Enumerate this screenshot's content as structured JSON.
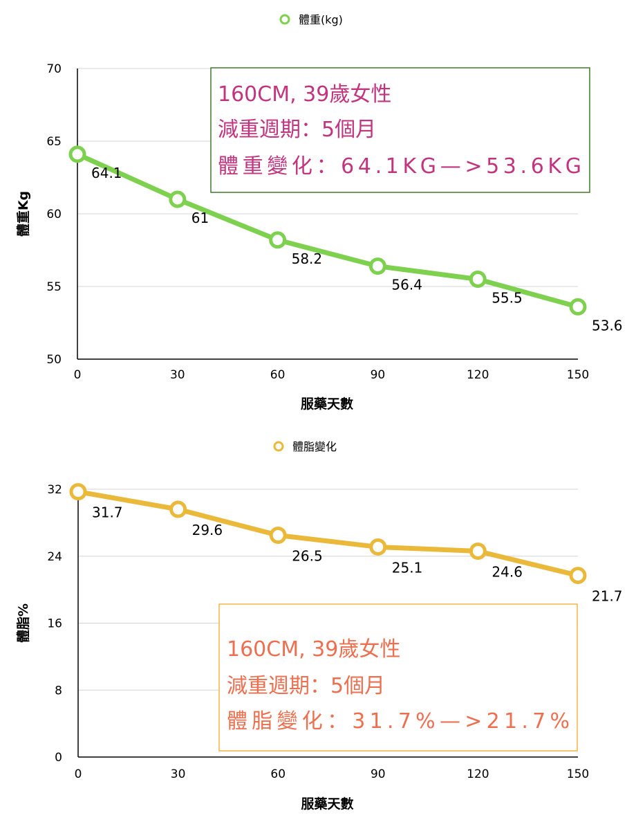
{
  "chart_data": [
    {
      "type": "line",
      "legend": {
        "label": "體重(kg)",
        "placement": "top-center"
      },
      "xlabel": "服藥天數",
      "ylabel": "體重Kg",
      "x": [
        0,
        30,
        60,
        90,
        120,
        150
      ],
      "series": [
        {
          "name": "體重(kg)",
          "values": [
            64.1,
            61,
            58.2,
            56.4,
            55.5,
            53.6
          ]
        }
      ],
      "data_labels": [
        "64.1",
        "61",
        "58.2",
        "56.4",
        "55.5",
        "53.6"
      ],
      "xticks": [
        "0",
        "30",
        "60",
        "90",
        "120",
        "150"
      ],
      "yticks": [
        "50",
        "55",
        "60",
        "65",
        "70"
      ],
      "xlim": [
        0,
        150
      ],
      "ylim": [
        50,
        70
      ],
      "grid": true,
      "color": "#7ed14e",
      "annotation": {
        "lines": [
          "160CM, 39歲女性",
          "減重週期：5個月",
          "體重變化：64.1KG—>53.6KG"
        ],
        "placement": "top-right",
        "text_color": "#c2347e",
        "border_color": "#3d7a2a"
      }
    },
    {
      "type": "line",
      "legend": {
        "label": "體脂變化",
        "placement": "top-center"
      },
      "xlabel": "服藥天數",
      "ylabel": "體脂%",
      "x": [
        0,
        30,
        60,
        90,
        120,
        150
      ],
      "series": [
        {
          "name": "體脂變化",
          "values": [
            31.7,
            29.6,
            26.5,
            25.1,
            24.6,
            21.7
          ]
        }
      ],
      "data_labels": [
        "31.7",
        "29.6",
        "26.5",
        "25.1",
        "24.6",
        "21.7"
      ],
      "xticks": [
        "0",
        "30",
        "60",
        "90",
        "120",
        "150"
      ],
      "yticks": [
        "0",
        "8",
        "16",
        "24",
        "32"
      ],
      "xlim": [
        0,
        150
      ],
      "ylim": [
        0,
        32
      ],
      "grid": true,
      "color": "#ebb93a",
      "annotation": {
        "lines": [
          "160CM, 39歲女性",
          "減重週期：5個月",
          "體脂變化：31.7%—>21.7%"
        ],
        "placement": "bottom-right",
        "text_color": "#ee6f4f",
        "border_color": "#f5b347"
      }
    }
  ]
}
